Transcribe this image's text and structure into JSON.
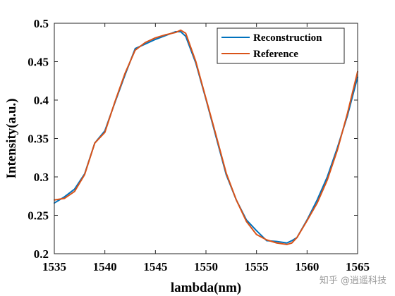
{
  "chart_data": {
    "type": "line",
    "xlabel": "lambda(nm)",
    "ylabel": "Intensity(a.u.)",
    "xlim": [
      1535,
      1565
    ],
    "ylim": [
      0.2,
      0.5
    ],
    "xticks": [
      "1535",
      "1540",
      "1545",
      "1550",
      "1555",
      "1560",
      "1565"
    ],
    "yticks": [
      "0.2",
      "0.25",
      "0.3",
      "0.35",
      "0.4",
      "0.45",
      "0.5"
    ],
    "grid": false,
    "legend_position": "top-right",
    "series": [
      {
        "name": "Reconstruction",
        "color": "#0072BD",
        "x": [
          1535,
          1536,
          1537,
          1538,
          1539,
          1540,
          1541,
          1542,
          1543,
          1544,
          1545,
          1546,
          1547,
          1547.5,
          1548,
          1549,
          1550,
          1551,
          1552,
          1553,
          1554,
          1555,
          1556,
          1557,
          1558,
          1558.5,
          1559,
          1560,
          1561,
          1562,
          1563,
          1564,
          1565
        ],
        "values": [
          0.266,
          0.274,
          0.284,
          0.304,
          0.344,
          0.36,
          0.397,
          0.433,
          0.467,
          0.473,
          0.479,
          0.484,
          0.489,
          0.489,
          0.483,
          0.448,
          0.401,
          0.352,
          0.303,
          0.27,
          0.244,
          0.23,
          0.217,
          0.216,
          0.214,
          0.217,
          0.221,
          0.244,
          0.27,
          0.3,
          0.338,
          0.38,
          0.43
        ]
      },
      {
        "name": "Reference",
        "color": "#D95319",
        "x": [
          1535,
          1536,
          1537,
          1538,
          1539,
          1540,
          1541,
          1542,
          1543,
          1544,
          1545,
          1546,
          1547,
          1547.5,
          1548,
          1549,
          1550,
          1551,
          1552,
          1553,
          1554,
          1555,
          1556,
          1557,
          1558,
          1558.5,
          1559,
          1560,
          1561,
          1562,
          1563,
          1564,
          1565
        ],
        "values": [
          0.27,
          0.272,
          0.281,
          0.303,
          0.344,
          0.358,
          0.398,
          0.435,
          0.465,
          0.475,
          0.481,
          0.485,
          0.488,
          0.491,
          0.487,
          0.45,
          0.402,
          0.354,
          0.305,
          0.27,
          0.242,
          0.225,
          0.218,
          0.214,
          0.212,
          0.214,
          0.221,
          0.243,
          0.266,
          0.296,
          0.335,
          0.383,
          0.437
        ]
      }
    ]
  },
  "watermark": "知乎 @逍遥科技"
}
